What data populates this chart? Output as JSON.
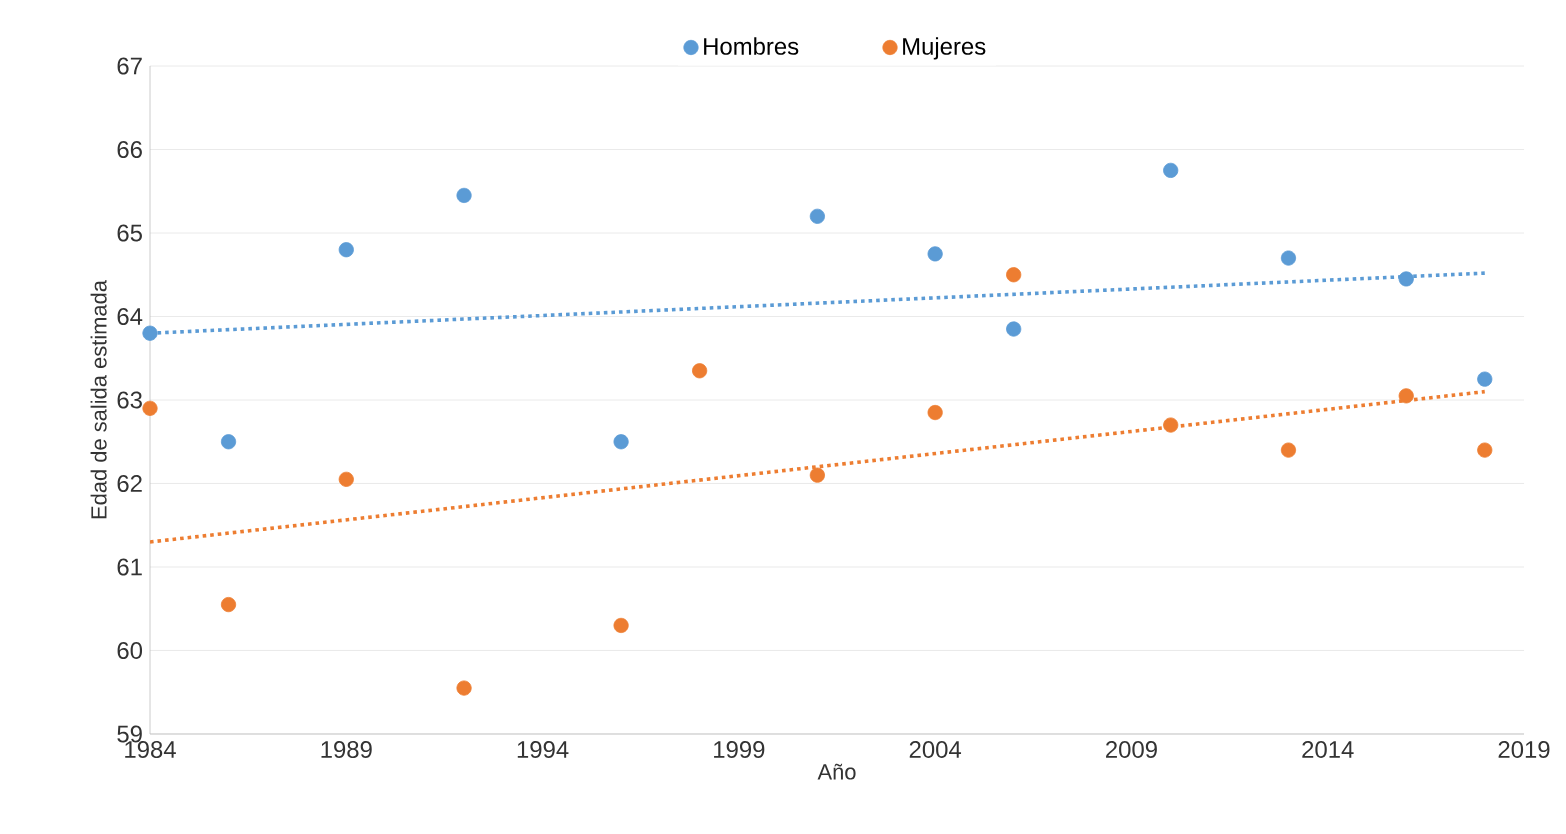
{
  "chart_data": {
    "type": "scatter",
    "xlabel": "Año",
    "ylabel": "Edad de salida estimada",
    "xlim": [
      1984,
      2019
    ],
    "xticks": [
      1984,
      1989,
      1994,
      1999,
      2004,
      2009,
      2014,
      2019
    ],
    "ylim": [
      59,
      67
    ],
    "yticks": [
      59,
      60,
      61,
      62,
      63,
      64,
      65,
      66,
      67
    ],
    "grid": "y",
    "legend": "top",
    "marker": "circle",
    "series": [
      {
        "name": "Hombres",
        "color": "#5b9bd5",
        "x": [
          1984,
          1986,
          1989,
          1992,
          1996,
          2001,
          2004,
          2006,
          2010,
          2013,
          2016,
          2018
        ],
        "values": [
          63.8,
          62.5,
          64.8,
          65.45,
          62.5,
          65.2,
          64.75,
          63.85,
          65.75,
          64.7,
          64.45,
          63.25
        ]
      },
      {
        "name": "Mujeres",
        "color": "#ed7d31",
        "x": [
          1984,
          1986,
          1989,
          1992,
          1996,
          1998,
          2001,
          2004,
          2006,
          2010,
          2013,
          2016,
          2018
        ],
        "values": [
          62.9,
          60.55,
          62.05,
          59.55,
          60.3,
          63.35,
          62.1,
          62.85,
          64.5,
          62.7,
          62.4,
          63.05,
          62.4
        ]
      },
      {
        "type": "line",
        "color": "#5b9bd5",
        "line_style": "dotted",
        "marker": "none",
        "x": [
          1984,
          2018
        ],
        "values": [
          63.8,
          64.52
        ]
      },
      {
        "type": "line",
        "color": "#ed7d31",
        "line_style": "dotted",
        "marker": "none",
        "x": [
          1984,
          2018
        ],
        "values": [
          61.3,
          63.1
        ]
      }
    ]
  }
}
